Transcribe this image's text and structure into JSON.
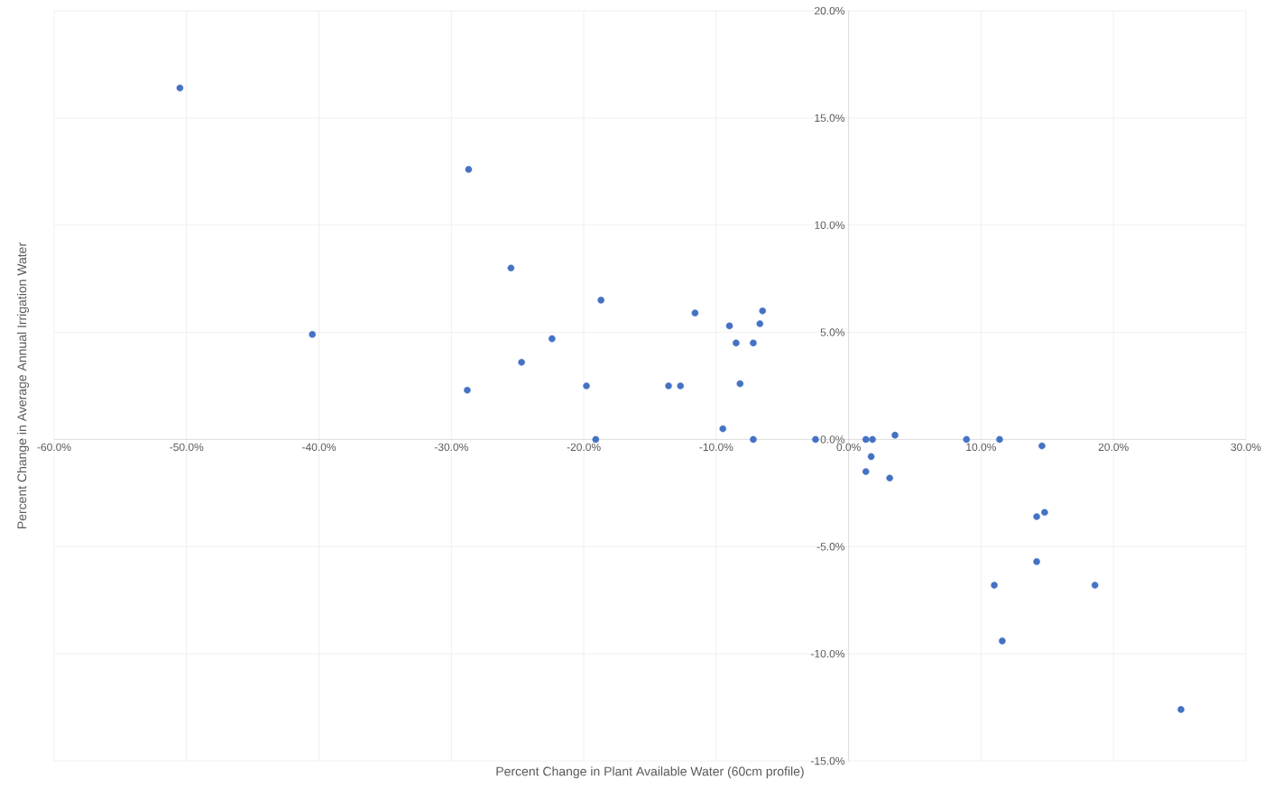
{
  "chart_data": {
    "type": "scatter",
    "xlabel": "Percent Change in Plant Available Water (60cm profile)",
    "ylabel": "Percent Change in Average Annual Irrigation Water",
    "x": [
      -50.5,
      -28.7,
      -25.5,
      -40.5,
      -18.7,
      -11.6,
      -6.5,
      -9.0,
      -6.7,
      -22.4,
      -8.5,
      -7.2,
      -24.7,
      -28.8,
      -19.8,
      -13.6,
      -12.7,
      -8.2,
      -9.5,
      -19.1,
      -7.2,
      -2.5,
      1.3,
      1.8,
      3.5,
      8.9,
      11.4,
      14.6,
      1.7,
      1.3,
      3.1,
      14.2,
      14.8,
      14.2,
      11.0,
      18.6,
      11.6,
      25.1
    ],
    "series": [
      {
        "color": "#4472c4",
        "values": [
          16.4,
          12.6,
          8.0,
          4.9,
          6.5,
          5.9,
          6.0,
          5.3,
          5.4,
          4.7,
          4.5,
          4.5,
          3.6,
          2.3,
          2.5,
          2.5,
          2.5,
          2.6,
          0.5,
          0,
          0,
          0,
          0,
          0,
          0.2,
          0,
          0,
          -0.3,
          -0.8,
          -1.5,
          -1.8,
          -3.6,
          -3.4,
          -5.7,
          -6.8,
          -6.8,
          -9.4,
          -12.6
        ]
      }
    ],
    "xlim": [
      -60,
      30
    ],
    "ylim": [
      -15,
      20
    ],
    "xticks": [
      {
        "value": -60,
        "label": "-60.0%"
      },
      {
        "value": -50,
        "label": "-50.0%"
      },
      {
        "value": -40,
        "label": "-40.0%"
      },
      {
        "value": -30,
        "label": "-30.0%"
      },
      {
        "value": -20,
        "label": "-20.0%"
      },
      {
        "value": -10,
        "label": "-10.0%"
      },
      {
        "value": 0,
        "label": "0.0%"
      },
      {
        "value": 10,
        "label": "10.0%"
      },
      {
        "value": 20,
        "label": "20.0%"
      },
      {
        "value": 30,
        "label": "30.0%"
      }
    ],
    "yticks": [
      {
        "value": -15,
        "label": "-15.0%"
      },
      {
        "value": -10,
        "label": "-10.0%"
      },
      {
        "value": -5,
        "label": "-5.0%"
      },
      {
        "value": 0,
        "label": "0.0%"
      },
      {
        "value": 5,
        "label": "5.0%"
      },
      {
        "value": 10,
        "label": "10.0%"
      },
      {
        "value": 15,
        "label": "15.0%"
      },
      {
        "value": 20,
        "label": "20.0%"
      }
    ],
    "grid": true
  }
}
